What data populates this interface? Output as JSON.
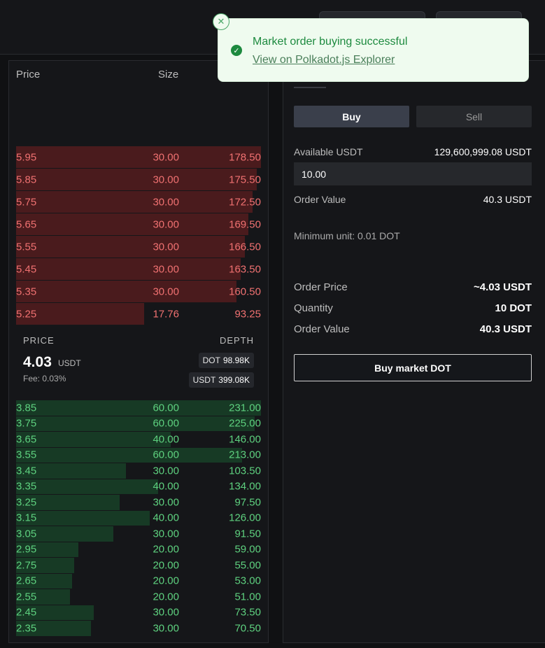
{
  "orderbook": {
    "header": {
      "price": "Price",
      "size": "Size"
    },
    "asks": [
      {
        "price": "5.95",
        "size": "30.00",
        "total": "178.50",
        "depth": 1.0
      },
      {
        "price": "5.85",
        "size": "30.00",
        "total": "175.50",
        "depth": 0.983
      },
      {
        "price": "5.75",
        "size": "30.00",
        "total": "172.50",
        "depth": 0.966
      },
      {
        "price": "5.65",
        "size": "30.00",
        "total": "169.50",
        "depth": 0.949
      },
      {
        "price": "5.55",
        "size": "30.00",
        "total": "166.50",
        "depth": 0.933
      },
      {
        "price": "5.45",
        "size": "30.00",
        "total": "163.50",
        "depth": 0.916
      },
      {
        "price": "5.35",
        "size": "30.00",
        "total": "160.50",
        "depth": 0.899
      },
      {
        "price": "5.25",
        "size": "17.76",
        "total": "93.25",
        "depth": 0.522
      }
    ],
    "mid": {
      "price_label": "PRICE",
      "depth_label": "DEPTH",
      "price": "4.03",
      "unit": "USDT",
      "fee": "Fee: 0.03%",
      "depth_dot_label": "DOT",
      "depth_dot_value": "98.98K",
      "depth_usdt_label": "USDT",
      "depth_usdt_value": "399.08K"
    },
    "bids": [
      {
        "price": "3.85",
        "size": "60.00",
        "total": "231.00",
        "depth": 1.0
      },
      {
        "price": "3.75",
        "size": "60.00",
        "total": "225.00",
        "depth": 0.974
      },
      {
        "price": "3.65",
        "size": "40.00",
        "total": "146.00",
        "depth": 0.632
      },
      {
        "price": "3.55",
        "size": "60.00",
        "total": "213.00",
        "depth": 0.922
      },
      {
        "price": "3.45",
        "size": "30.00",
        "total": "103.50",
        "depth": 0.448
      },
      {
        "price": "3.35",
        "size": "40.00",
        "total": "134.00",
        "depth": 0.58
      },
      {
        "price": "3.25",
        "size": "30.00",
        "total": "97.50",
        "depth": 0.422
      },
      {
        "price": "3.15",
        "size": "40.00",
        "total": "126.00",
        "depth": 0.545
      },
      {
        "price": "3.05",
        "size": "30.00",
        "total": "91.50",
        "depth": 0.396
      },
      {
        "price": "2.95",
        "size": "20.00",
        "total": "59.00",
        "depth": 0.255
      },
      {
        "price": "2.75",
        "size": "20.00",
        "total": "55.00",
        "depth": 0.238
      },
      {
        "price": "2.65",
        "size": "20.00",
        "total": "53.00",
        "depth": 0.229
      },
      {
        "price": "2.55",
        "size": "20.00",
        "total": "51.00",
        "depth": 0.221
      },
      {
        "price": "2.45",
        "size": "30.00",
        "total": "73.50",
        "depth": 0.318
      },
      {
        "price": "2.35",
        "size": "30.00",
        "total": "70.50",
        "depth": 0.305
      }
    ]
  },
  "form": {
    "buy_label": "Buy",
    "sell_label": "Sell",
    "available_label": "Available USDT",
    "available_value": "129,600,999.08 USDT",
    "amount_value": "10.00",
    "order_value_label": "Order Value",
    "order_value_value": "40.3 USDT",
    "min_unit": "Minimum unit: 0.01 DOT",
    "summary": {
      "order_price_label": "Order Price",
      "order_price_value": "~4.03 USDT",
      "quantity_label": "Quantity",
      "quantity_value": "10 DOT",
      "order_value_label": "Order Value",
      "order_value_value": "40.3 USDT"
    },
    "submit_label": "Buy market DOT"
  },
  "toast": {
    "title": "Market order buying successful",
    "link": "View on Polkadot.js Explorer",
    "close_icon": "close-icon",
    "status_icon": "check-circle-icon"
  },
  "colors": {
    "ask_text": "#f07171",
    "ask_bar": "#4a1b1d",
    "bid_text": "#5ed17f",
    "bid_bar": "#173a25",
    "success": "#1d8a3f"
  }
}
